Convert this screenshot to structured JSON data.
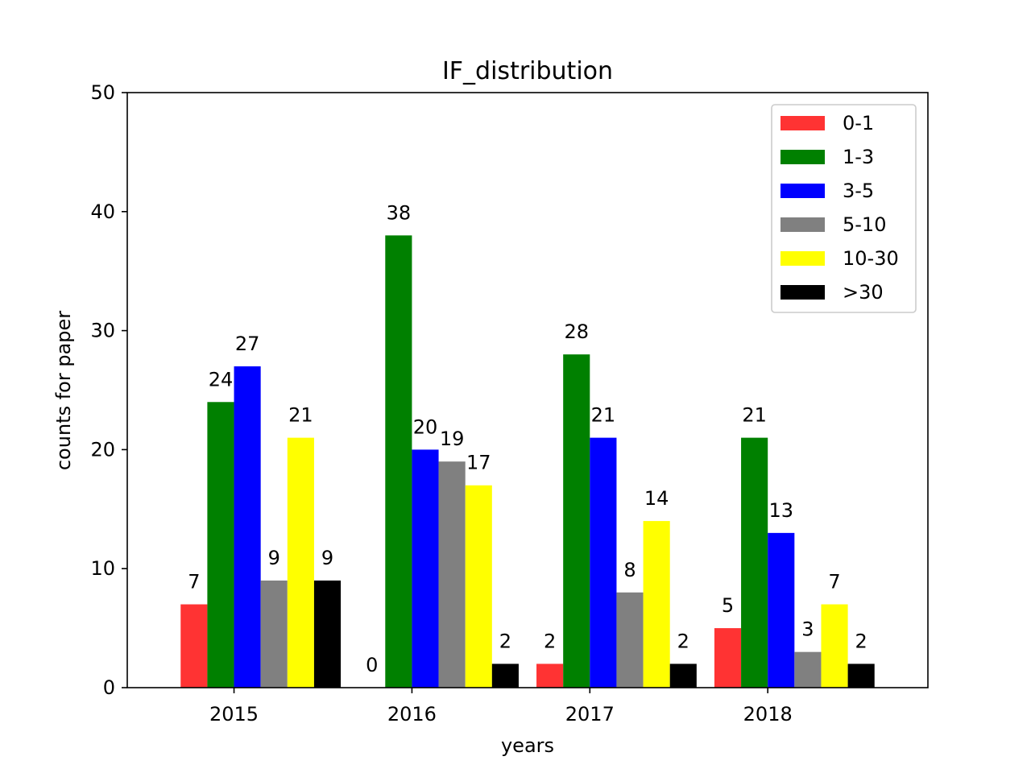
{
  "chart_data": {
    "type": "bar",
    "title": "IF_distribution",
    "xlabel": "years",
    "ylabel": "counts for paper",
    "categories": [
      "2015",
      "2016",
      "2017",
      "2018"
    ],
    "ylim": [
      0,
      50
    ],
    "yticks": [
      0,
      10,
      20,
      30,
      40,
      50
    ],
    "grid": false,
    "legend_position": "top-right",
    "series": [
      {
        "name": "0-1",
        "color": "#ff3333",
        "values": [
          7,
          0,
          2,
          5
        ]
      },
      {
        "name": "1-3",
        "color": "#008000",
        "values": [
          24,
          38,
          28,
          21
        ]
      },
      {
        "name": "3-5",
        "color": "#0000ff",
        "values": [
          27,
          20,
          21,
          13
        ]
      },
      {
        "name": "5-10",
        "color": "#808080",
        "values": [
          9,
          19,
          8,
          3
        ]
      },
      {
        "name": "10-30",
        "color": "#ffff00",
        "values": [
          21,
          17,
          14,
          7
        ]
      },
      {
        "name": ">30",
        "color": "#000000",
        "values": [
          9,
          2,
          2,
          2
        ]
      }
    ]
  }
}
